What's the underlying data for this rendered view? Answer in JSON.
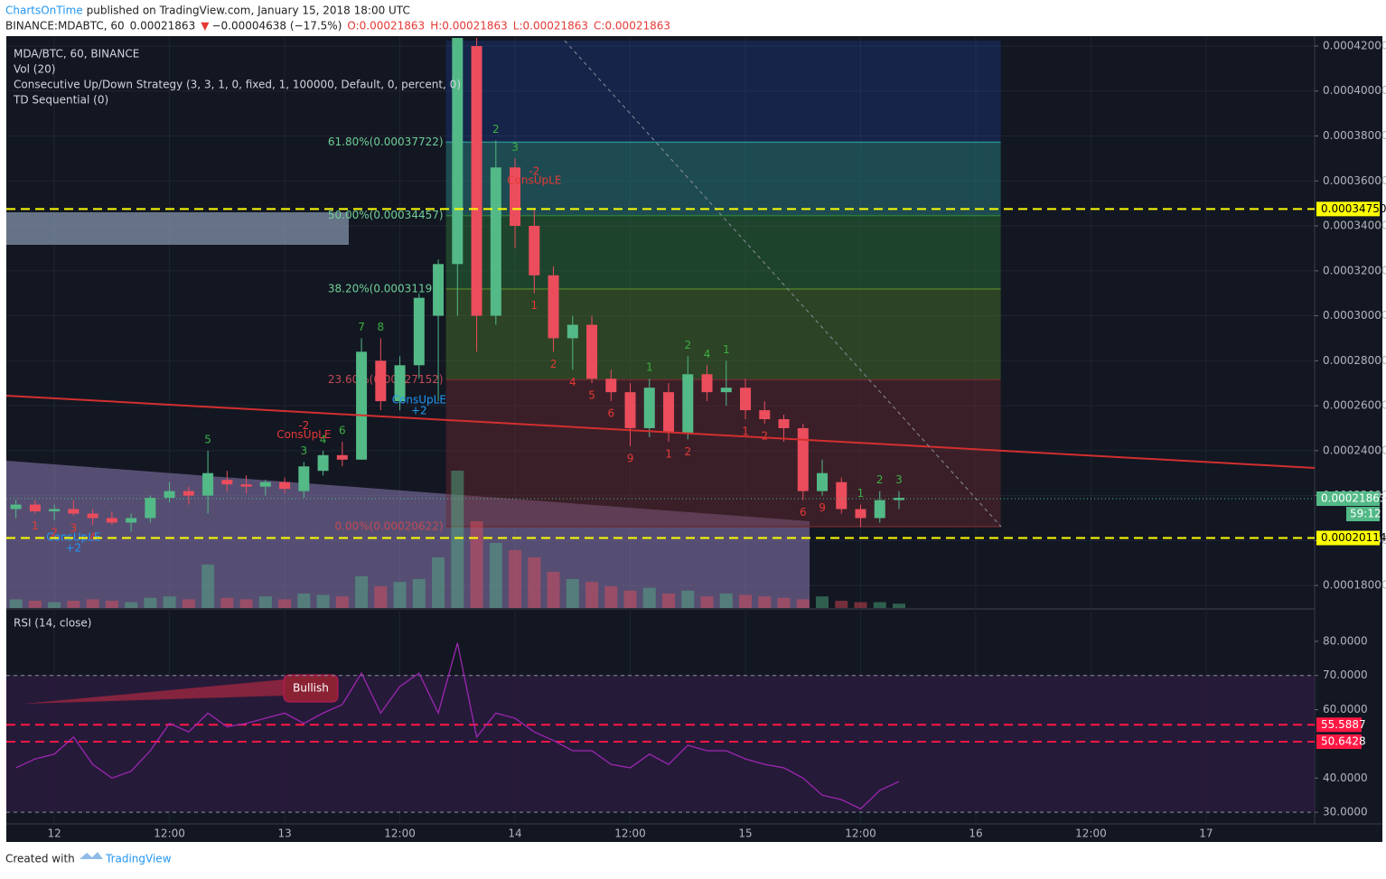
{
  "header": {
    "author": "ChartsOnTime",
    "published": "published on TradingView.com, January 15, 2018 18:00 UTC",
    "symbol": "BINANCE:MDABTC, 60",
    "last": "0.00021863",
    "arrow": "▼",
    "change": "−0.00004638 (−17.5%)",
    "ohlc": [
      "O:0.00021863",
      "H:0.00021863",
      "L:0.00021863",
      "C:0.00021863"
    ]
  },
  "chart_data": {
    "type": "candlestick",
    "legend": [
      "MDA/BTC, 60, BINANCE",
      "Vol (20)",
      "Consecutive Up/Down Strategy (3, 3, 1, 0, fixed, 1, 100000, Default, 0, percent, 0)",
      "TD Sequential (0)"
    ],
    "up_color": "#53b987",
    "down_color": "#eb4d5c",
    "x": [
      -4,
      -2,
      0,
      2,
      4,
      6,
      8,
      10,
      12,
      14,
      16,
      18,
      20,
      22,
      24,
      26,
      28,
      30,
      32,
      34,
      36,
      38,
      40,
      42,
      44,
      46,
      48,
      50,
      52,
      54,
      56,
      58,
      60,
      62,
      64,
      66,
      68,
      70,
      72,
      74,
      76,
      78,
      80,
      82,
      84,
      86,
      88
    ],
    "open": [
      0.000214,
      0.000216,
      0.000213,
      0.000214,
      0.000212,
      0.00021,
      0.000208,
      0.00021,
      0.000219,
      0.000222,
      0.00022,
      0.000227,
      0.000225,
      0.000224,
      0.000226,
      0.000222,
      0.000231,
      0.000238,
      0.000236,
      0.00028,
      0.000262,
      0.000278,
      0.0003,
      0.000323,
      0.00042,
      0.0003,
      0.000366,
      0.00034,
      0.000318,
      0.00029,
      0.000296,
      0.000272,
      0.000266,
      0.00025,
      0.000266,
      0.000248,
      0.000274,
      0.000266,
      0.000268,
      0.000258,
      0.000254,
      0.00025,
      0.000222,
      0.000226,
      0.000214,
      0.00021,
      0.000218
    ],
    "high": [
      0.000218,
      0.000218,
      0.000216,
      0.000218,
      0.000214,
      0.000213,
      0.000212,
      0.00022,
      0.000226,
      0.000224,
      0.00024,
      0.000231,
      0.000229,
      0.000227,
      0.000228,
      0.000235,
      0.00024,
      0.000244,
      0.00029,
      0.00029,
      0.000282,
      0.00031,
      0.000325,
      0.00043,
      0.00043,
      0.000378,
      0.00037,
      0.000348,
      0.000322,
      0.0003,
      0.0003,
      0.000276,
      0.00027,
      0.000272,
      0.00027,
      0.000282,
      0.000278,
      0.00028,
      0.000272,
      0.000262,
      0.000256,
      0.000252,
      0.000236,
      0.000228,
      0.000216,
      0.000222,
      0.000222
    ],
    "low": [
      0.00021,
      0.000212,
      0.000209,
      0.000211,
      0.000207,
      0.000207,
      0.000204,
      0.000208,
      0.000217,
      0.000216,
      0.000212,
      0.000222,
      0.000221,
      0.00022,
      0.000221,
      0.000219,
      0.000229,
      0.000233,
      0.000236,
      0.000258,
      0.000258,
      0.000272,
      0.000262,
      0.0003,
      0.000284,
      0.000296,
      0.00033,
      0.00031,
      0.000284,
      0.000276,
      0.00027,
      0.000262,
      0.000242,
      0.000246,
      0.000244,
      0.000245,
      0.000262,
      0.00026,
      0.000254,
      0.000252,
      0.000244,
      0.000218,
      0.00022,
      0.000212,
      0.000206,
      0.000208,
      0.000214
    ],
    "close": [
      0.000216,
      0.000213,
      0.000214,
      0.000212,
      0.00021,
      0.000208,
      0.00021,
      0.000219,
      0.000222,
      0.00022,
      0.00023,
      0.000225,
      0.000224,
      0.000226,
      0.000223,
      0.000233,
      0.000238,
      0.000236,
      0.000284,
      0.000262,
      0.000278,
      0.000308,
      0.000323,
      0.000425,
      0.0003,
      0.000366,
      0.00034,
      0.000318,
      0.00029,
      0.000296,
      0.000272,
      0.000266,
      0.00025,
      0.000268,
      0.000248,
      0.000274,
      0.000266,
      0.000268,
      0.000258,
      0.000254,
      0.00025,
      0.000222,
      0.00023,
      0.000214,
      0.00021,
      0.000218,
      0.000219
    ],
    "volume": [
      6,
      5,
      4,
      5,
      6,
      5,
      4,
      7,
      8,
      6,
      30,
      7,
      6,
      8,
      6,
      10,
      9,
      8,
      22,
      15,
      18,
      20,
      35,
      95,
      60,
      45,
      40,
      35,
      25,
      20,
      18,
      15,
      12,
      14,
      10,
      12,
      8,
      10,
      9,
      8,
      7,
      6,
      8,
      5,
      4,
      4,
      3
    ],
    "vlim": [
      0,
      100
    ],
    "xlim": [
      -5,
      131.3
    ],
    "xticks": [
      {
        "value": 0,
        "label": "12"
      },
      {
        "value": 12,
        "label": "12:00"
      },
      {
        "value": 24,
        "label": "13"
      },
      {
        "value": 36,
        "label": "12:00"
      },
      {
        "value": 48,
        "label": "14"
      },
      {
        "value": 60,
        "label": "12:00"
      },
      {
        "value": 72,
        "label": "15"
      },
      {
        "value": 84,
        "label": "12:00"
      },
      {
        "value": 96,
        "label": "16"
      },
      {
        "value": 108,
        "label": "12:00"
      },
      {
        "value": 120,
        "label": "17"
      }
    ],
    "ylim": [
      0.00017,
      0.0004224
    ],
    "yticks": [
      {
        "value": 0.00042,
        "label": "0.00042000"
      },
      {
        "value": 0.0004,
        "label": "0.00040000"
      },
      {
        "value": 0.00038,
        "label": "0.00038000"
      },
      {
        "value": 0.00036,
        "label": "0.00036000"
      },
      {
        "value": 0.00034,
        "label": "0.00034000"
      },
      {
        "value": 0.00032,
        "label": "0.00032000"
      },
      {
        "value": 0.0003,
        "label": "0.00030000"
      },
      {
        "value": 0.00028,
        "label": "0.00028000"
      },
      {
        "value": 0.00026,
        "label": "0.00026000"
      },
      {
        "value": 0.00024,
        "label": "0.00024000"
      },
      {
        "value": 0.00022,
        "label": "0.00022000"
      },
      {
        "value": 0.0002,
        "label": "0.00020000"
      },
      {
        "value": 0.00018,
        "label": "0.00018000"
      }
    ],
    "grid": true,
    "price_lines": [
      {
        "value": 0.0003475,
        "label": "0.00034750",
        "color": "#ffff00"
      },
      {
        "value": 0.00020114,
        "label": "0.00020114",
        "color": "#ffff00"
      }
    ],
    "current_price": {
      "value": 0.00021863,
      "label": "0.00021863",
      "countdown": "59:12",
      "color": "#53b987"
    },
    "fib": {
      "x": [
        40.8,
        98.6
      ],
      "levels": [
        {
          "value": 0.00037722,
          "label": "61.80%(0.00037722)",
          "color": "#2a8c8c"
        },
        {
          "value": 0.00034457,
          "label": "50.00%(0.00034457)",
          "color": "#2d7a3a"
        },
        {
          "value": 0.00031191,
          "label": "38.20%(0.00031191)",
          "color": "#4c7a2a"
        },
        {
          "value": 0.00027152,
          "label": "23.60%(0.00027152)",
          "color": "#6b2a30"
        },
        {
          "value": 0.00020622,
          "label": "0.00%(0.00020622)",
          "color": "#6b2a30"
        }
      ]
    },
    "td_up": [
      {
        "x": 16,
        "label": "5"
      },
      {
        "x": 26,
        "label": "3"
      },
      {
        "x": 28,
        "label": "4"
      },
      {
        "x": 30,
        "label": "6"
      },
      {
        "x": 32,
        "label": "7"
      },
      {
        "x": 34,
        "label": "8"
      },
      {
        "x": 46,
        "label": "2"
      },
      {
        "x": 48,
        "label": "3"
      },
      {
        "x": 62,
        "label": "1"
      },
      {
        "x": 66,
        "label": "2"
      },
      {
        "x": 68,
        "label": "4"
      },
      {
        "x": 70,
        "label": "1"
      },
      {
        "x": 84,
        "label": "1"
      },
      {
        "x": 86,
        "label": "2"
      },
      {
        "x": 88,
        "label": "3"
      }
    ],
    "td_down": [
      {
        "x": -2,
        "label": "1"
      },
      {
        "x": 0,
        "label": "2"
      },
      {
        "x": 2,
        "label": "3"
      },
      {
        "x": 4,
        "label": "4"
      },
      {
        "x": 50,
        "label": "1"
      },
      {
        "x": 52,
        "label": "2"
      },
      {
        "x": 54,
        "label": "4"
      },
      {
        "x": 56,
        "label": "5"
      },
      {
        "x": 58,
        "label": "6"
      },
      {
        "x": 60,
        "label": "9"
      },
      {
        "x": 64,
        "label": "1"
      },
      {
        "x": 66,
        "label": "2"
      },
      {
        "x": 72,
        "label": "1"
      },
      {
        "x": 74,
        "label": "2"
      },
      {
        "x": 78,
        "label": "6"
      },
      {
        "x": 80,
        "label": "9"
      }
    ],
    "signals": [
      {
        "x": 26,
        "label": "ConsUpLE",
        "qty": "-2",
        "color": "#e53935"
      },
      {
        "x": 38,
        "label": "ConsUpLE",
        "qty": "+2",
        "color": "#2196f3"
      },
      {
        "x": 50,
        "label": "ConsUpLE",
        "qty": "-2",
        "color": "#e53935"
      },
      {
        "x": 2,
        "label": "ConsUpLE",
        "qty": "+2",
        "color": "#2196f3"
      }
    ],
    "rsi": {
      "title": "RSI (14, close)",
      "color": "#9c27b0",
      "values": [
        43,
        45.6,
        47,
        52,
        44,
        40,
        42,
        48,
        56,
        53.5,
        59,
        55,
        56,
        57.5,
        59,
        56,
        59,
        61.5,
        70.7,
        59,
        66.8,
        70.7,
        59,
        79.5,
        52,
        59,
        57.5,
        53.5,
        51,
        48,
        48,
        44,
        43,
        47,
        44,
        49.6,
        48,
        48,
        45.6,
        44,
        43,
        40,
        35,
        33.7,
        31,
        36.4,
        39
      ],
      "ylim": [
        26.6,
        87.9
      ],
      "yticks": [
        {
          "value": 80,
          "label": "80.0000"
        },
        {
          "value": 70,
          "label": "70.0000"
        },
        {
          "value": 60,
          "label": "60.0000"
        },
        {
          "value": 40,
          "label": "40.0000"
        },
        {
          "value": 30,
          "label": "30.0000"
        }
      ],
      "bands": [
        70,
        30
      ],
      "levels": [
        {
          "value": 55.5887,
          "label": "55.5887"
        },
        {
          "value": 50.6428,
          "label": "50.6428"
        }
      ],
      "annotation": "Bullish"
    }
  },
  "footer": {
    "created": "Created with",
    "brand": "TradingView"
  }
}
